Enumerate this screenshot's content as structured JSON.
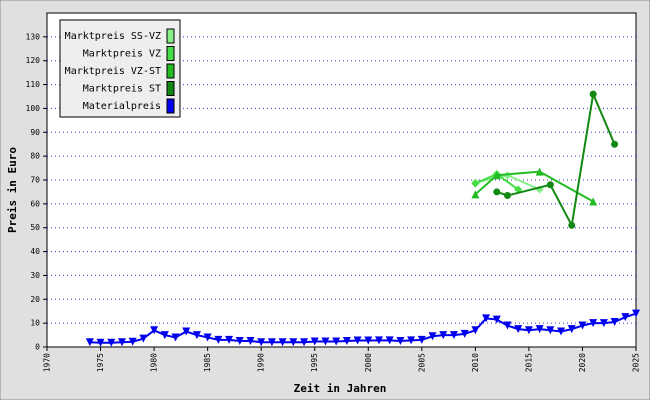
{
  "chart_data": {
    "type": "line",
    "x_label": "Zeit in Jahren",
    "y_label": "Preis in Euro",
    "xlim": [
      1970,
      2025
    ],
    "xticks": [
      1970,
      1975,
      1980,
      1985,
      1990,
      1995,
      2000,
      2005,
      2010,
      2015,
      2020,
      2025
    ],
    "ylim": [
      0,
      140
    ],
    "yticks": [
      0,
      10,
      20,
      30,
      40,
      50,
      60,
      70,
      80,
      90,
      100,
      110,
      120,
      130
    ],
    "grid": true,
    "legend": "top-left",
    "series": [
      {
        "name": "Marktpreis SS-VZ",
        "color": "#88ee88",
        "marker": "diamond",
        "x": [
          2010,
          2013,
          2016
        ],
        "values": [
          69,
          72,
          66
        ]
      },
      {
        "name": "Marktpreis VZ",
        "color": "#44dd44",
        "marker": "diamond",
        "x": [
          2010,
          2012,
          2014
        ],
        "values": [
          68.5,
          72.5,
          66
        ]
      },
      {
        "name": "Marktpreis VZ-ST",
        "color": "#22bb22",
        "marker": "triangle-up",
        "x": [
          2010,
          2012,
          2016,
          2021
        ],
        "values": [
          64,
          72,
          73.5,
          61
        ]
      },
      {
        "name": "Marktpreis ST",
        "color": "#118811",
        "marker": "circle",
        "x": [
          2012,
          2013,
          2017,
          2019,
          2021,
          2023
        ],
        "values": [
          65,
          63.5,
          68,
          51,
          106,
          85
        ]
      },
      {
        "name": "Materialpreis",
        "color": "#0000ee",
        "marker": "triangle-down",
        "x": [
          1974,
          1975,
          1976,
          1977,
          1978,
          1979,
          1980,
          1981,
          1982,
          1983,
          1984,
          1985,
          1986,
          1987,
          1988,
          1989,
          1990,
          1991,
          1992,
          1993,
          1994,
          1995,
          1996,
          1997,
          1998,
          1999,
          2000,
          2001,
          2002,
          2003,
          2004,
          2005,
          2006,
          2007,
          2008,
          2009,
          2010,
          2011,
          2012,
          2013,
          2014,
          2015,
          2016,
          2017,
          2018,
          2019,
          2020,
          2021,
          2022,
          2023,
          2024,
          2025
        ],
        "values": [
          2,
          1.8,
          1.8,
          2,
          2.2,
          3.5,
          7,
          5,
          4,
          6.5,
          5,
          4,
          3,
          3,
          2.5,
          2.5,
          2,
          2,
          2,
          2,
          2,
          2.3,
          2.3,
          2.3,
          2.5,
          2.7,
          2.7,
          2.8,
          2.8,
          2.5,
          2.8,
          3,
          4.5,
          5,
          5,
          5.5,
          7,
          12,
          11.5,
          9,
          7.5,
          7,
          7.5,
          7,
          6.5,
          7.5,
          9,
          10,
          10,
          10.5,
          12.5,
          14
        ]
      }
    ]
  }
}
